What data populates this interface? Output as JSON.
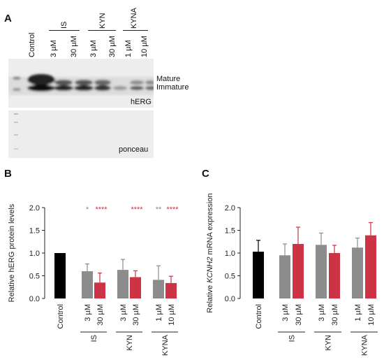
{
  "panel_a": {
    "letter": "A",
    "lanes": [
      "Control",
      "3 µM",
      "30 µM",
      "3 µM",
      "30 µM",
      "1 µM",
      "10 µM"
    ],
    "groups": [
      "IS",
      "KYN",
      "KYNA"
    ],
    "band_labels": [
      "Mature",
      "Immature"
    ],
    "blot_label": "hERG",
    "stain_label": "ponceau"
  },
  "panel_b": {
    "letter": "B",
    "significance": [
      {
        "group": "IS",
        "gray": "*",
        "red": "****"
      },
      {
        "group": "KYN",
        "gray": "",
        "red": "****"
      },
      {
        "group": "KYNA",
        "gray": "**",
        "red": "****"
      }
    ]
  },
  "panel_c": {
    "letter": "C"
  },
  "colors": {
    "control": "#000000",
    "low_dose": "#8c8c8c",
    "high_dose": "#cc3344"
  },
  "chart_data": [
    {
      "type": "bar",
      "ylabel": "Relative hERG protein levels",
      "ylim": [
        0,
        2.0
      ],
      "yticks": [
        "0.0",
        "0.5",
        "1.0",
        "1.5",
        "2.0"
      ],
      "categories": [
        "Control",
        "3 µM",
        "30 µM",
        "3 µM",
        "30 µM",
        "1 µM",
        "10 µM"
      ],
      "groups": [
        "IS",
        "KYN",
        "KYNA"
      ],
      "values": [
        1.0,
        0.6,
        0.35,
        0.63,
        0.47,
        0.41,
        0.34
      ],
      "errors": [
        0.0,
        0.16,
        0.21,
        0.23,
        0.14,
        0.31,
        0.15
      ]
    },
    {
      "type": "bar",
      "ylabel_pre": "Relative ",
      "ylabel_gene": "KCNH2",
      "ylabel_post": " mRNA expression",
      "ylim": [
        0,
        2.0
      ],
      "yticks": [
        "0.0",
        "0.5",
        "1.0",
        "1.5",
        "2.0"
      ],
      "categories": [
        "Control",
        "3 µM",
        "30 µM",
        "3 µM",
        "30 µM",
        "1 µM",
        "10 µM"
      ],
      "groups": [
        "IS",
        "KYN",
        "KYNA"
      ],
      "values": [
        1.03,
        0.95,
        1.2,
        1.18,
        1.0,
        1.12,
        1.39
      ],
      "errors": [
        0.25,
        0.25,
        0.37,
        0.26,
        0.17,
        0.21,
        0.28
      ]
    }
  ]
}
